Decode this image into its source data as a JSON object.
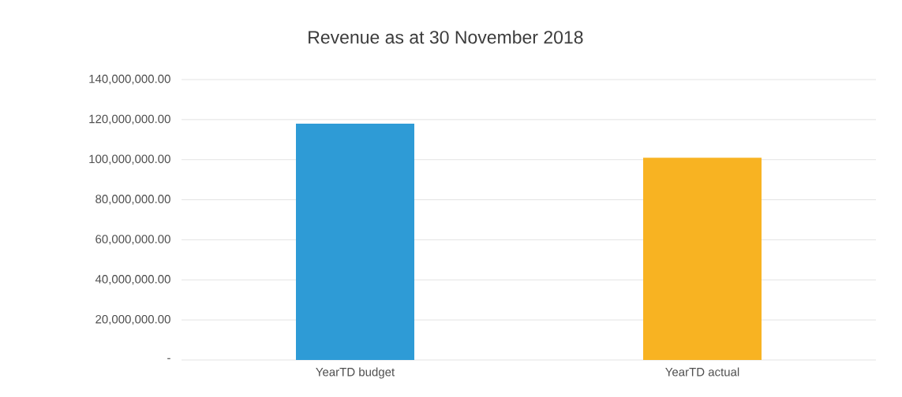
{
  "chart_data": {
    "type": "bar",
    "title": "Revenue as at 30 November 2018",
    "categories": [
      "YearTD budget",
      "YearTD actual"
    ],
    "values": [
      118000000,
      101000000
    ],
    "colors": [
      "#2e9bd6",
      "#f8b322"
    ],
    "ylim": [
      0,
      140000000
    ],
    "yticks": [
      {
        "value": 0,
        "label": "-"
      },
      {
        "value": 20000000,
        "label": "20,000,000.00"
      },
      {
        "value": 40000000,
        "label": "40,000,000.00"
      },
      {
        "value": 60000000,
        "label": "60,000,000.00"
      },
      {
        "value": 80000000,
        "label": "80,000,000.00"
      },
      {
        "value": 100000000,
        "label": "100,000,000.00"
      },
      {
        "value": 120000000,
        "label": "120,000,000.00"
      },
      {
        "value": 140000000,
        "label": "140,000,000.00"
      }
    ],
    "grid": "y"
  }
}
